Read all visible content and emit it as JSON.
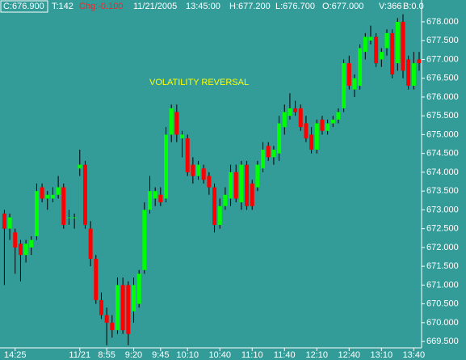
{
  "chart_data": {
    "type": "candlestick",
    "info": [
      "C:676.900",
      "T:142",
      "Chg:-0.100",
      "11/21/2005",
      "13:45:00",
      "H:677.200",
      "L:676.700",
      "O:677.000",
      "V:366",
      "B:0.0"
    ],
    "annotation": "VOLATILITY REVERSAL",
    "up_color": "#00ff00",
    "down_color": "#ff0000",
    "wick_color": "#000000",
    "categories": [
      null,
      null,
      "14:25",
      null,
      null,
      null,
      null,
      null,
      null,
      null,
      null,
      null,
      null,
      null,
      "11/21",
      null,
      null,
      null,
      null,
      "8:55",
      null,
      null,
      null,
      null,
      "9:20",
      null,
      null,
      null,
      null,
      "9:45",
      null,
      null,
      null,
      null,
      "10:10",
      null,
      null,
      null,
      null,
      null,
      "10:40",
      null,
      null,
      null,
      null,
      null,
      "11:10",
      null,
      null,
      null,
      null,
      null,
      "11:40",
      null,
      null,
      null,
      null,
      null,
      "12:10",
      null,
      null,
      null,
      null,
      null,
      "12:40",
      null,
      null,
      null,
      null,
      null,
      "13:10",
      null,
      null,
      null,
      null,
      null,
      "13:40",
      null
    ],
    "open": [
      672.9,
      672.5,
      672.4,
      672.1,
      671.8,
      672.0,
      672.3,
      673.6,
      673.3,
      673.3,
      673.4,
      673.6,
      672.8,
      672.8,
      674.1,
      674.2,
      672.5,
      671.7,
      670.6,
      670.2,
      670.0,
      669.8,
      671.0,
      671.0,
      670.3,
      670.5,
      671.4,
      673.0,
      673.3,
      673.4,
      673.3,
      675.0,
      675.6,
      674.9,
      674.9,
      674.2,
      673.9,
      674.1,
      673.9,
      673.6,
      672.6,
      673.1,
      673.3,
      674.0,
      673.2,
      674.2,
      673.7,
      673.6,
      674.1,
      674.7,
      674.4,
      674.5,
      675.2,
      675.5,
      675.7,
      675.7,
      675.3,
      675.0,
      674.6,
      675.4,
      675.1,
      675.3,
      675.4,
      675.7,
      676.9,
      676.2,
      676.3,
      677.2,
      677.5,
      677.6,
      677.0,
      677.3,
      677.7,
      676.9,
      678.0,
      677.0,
      676.3,
      677.0
    ],
    "high": [
      673.0,
      672.9,
      672.5,
      672.2,
      672.2,
      672.3,
      673.7,
      673.7,
      673.5,
      673.6,
      673.9,
      673.7,
      673.0,
      672.9,
      674.6,
      674.3,
      672.7,
      671.8,
      670.8,
      670.4,
      670.2,
      671.2,
      671.2,
      671.1,
      671.2,
      671.4,
      673.2,
      673.9,
      673.6,
      673.6,
      675.2,
      675.8,
      675.8,
      675.1,
      675.0,
      674.4,
      674.3,
      674.2,
      674.0,
      673.7,
      673.3,
      673.6,
      674.2,
      674.2,
      674.3,
      674.3,
      673.8,
      674.3,
      674.8,
      674.8,
      674.7,
      675.5,
      675.8,
      676.1,
      675.9,
      675.8,
      675.5,
      675.2,
      675.4,
      675.5,
      675.4,
      675.5,
      675.7,
      677.0,
      677.1,
      676.6,
      677.4,
      677.7,
      677.9,
      677.7,
      677.3,
      677.8,
      677.8,
      678.1,
      678.2,
      677.1,
      677.2,
      677.2
    ],
    "low": [
      671.0,
      672.2,
      671.3,
      671.1,
      671.6,
      671.8,
      672.2,
      673.2,
      673.0,
      673.2,
      673.3,
      672.5,
      672.6,
      672.5,
      673.9,
      672.5,
      671.5,
      670.5,
      670.1,
      669.4,
      669.6,
      669.7,
      669.7,
      669.4,
      670.0,
      670.4,
      671.3,
      672.9,
      673.1,
      673.1,
      673.2,
      674.8,
      674.8,
      674.4,
      673.9,
      673.7,
      673.8,
      673.7,
      673.4,
      672.4,
      672.5,
      673.0,
      673.1,
      673.2,
      673.0,
      673.0,
      673.0,
      673.5,
      674.0,
      674.3,
      674.2,
      674.3,
      675.0,
      675.4,
      675.5,
      675.1,
      674.8,
      674.5,
      674.5,
      675.0,
      675.0,
      675.2,
      675.3,
      675.6,
      676.2,
      676.0,
      676.2,
      677.0,
      677.4,
      676.8,
      676.8,
      677.1,
      676.5,
      676.7,
      676.5,
      676.2,
      676.2,
      676.7
    ],
    "close": [
      672.5,
      672.8,
      672.0,
      671.8,
      672.1,
      672.2,
      673.5,
      673.3,
      673.4,
      673.4,
      673.6,
      672.6,
      672.8,
      672.8,
      674.2,
      672.6,
      671.7,
      670.6,
      670.2,
      670.0,
      669.8,
      671.0,
      669.8,
      669.7,
      671.0,
      671.3,
      673.0,
      673.5,
      673.5,
      673.2,
      675.0,
      675.7,
      675.0,
      675.0,
      674.0,
      673.9,
      674.2,
      673.8,
      673.6,
      672.6,
      673.1,
      673.4,
      674.0,
      673.3,
      674.2,
      673.1,
      673.1,
      674.2,
      674.6,
      674.4,
      674.6,
      675.3,
      675.6,
      675.7,
      675.6,
      675.2,
      674.9,
      674.6,
      675.3,
      675.1,
      675.3,
      675.4,
      675.6,
      676.9,
      676.3,
      676.5,
      677.3,
      677.6,
      677.6,
      676.9,
      677.2,
      677.7,
      676.6,
      678.0,
      676.7,
      676.3,
      676.9,
      676.9
    ],
    "ylim": [
      669.33,
      678.58
    ],
    "yticks": [
      {
        "value": 669.5,
        "label": "669.500"
      },
      {
        "value": 670.0,
        "label": "670.000"
      },
      {
        "value": 670.5,
        "label": "670.500"
      },
      {
        "value": 671.0,
        "label": "671.000"
      },
      {
        "value": 671.5,
        "label": "671.500"
      },
      {
        "value": 672.0,
        "label": "672.000"
      },
      {
        "value": 672.5,
        "label": "672.500"
      },
      {
        "value": 673.0,
        "label": "673.000"
      },
      {
        "value": 673.5,
        "label": "673.500"
      },
      {
        "value": 674.0,
        "label": "674.000"
      },
      {
        "value": 674.5,
        "label": "674.500"
      },
      {
        "value": 675.0,
        "label": "675.000"
      },
      {
        "value": 675.5,
        "label": "675.500"
      },
      {
        "value": 676.0,
        "label": "676.000"
      },
      {
        "value": 676.5,
        "label": "676.500"
      },
      {
        "value": 677.0,
        "label": "677.000"
      },
      {
        "value": 677.5,
        "label": "677.500"
      },
      {
        "value": 678.0,
        "label": "678.000"
      }
    ],
    "grid": false
  }
}
